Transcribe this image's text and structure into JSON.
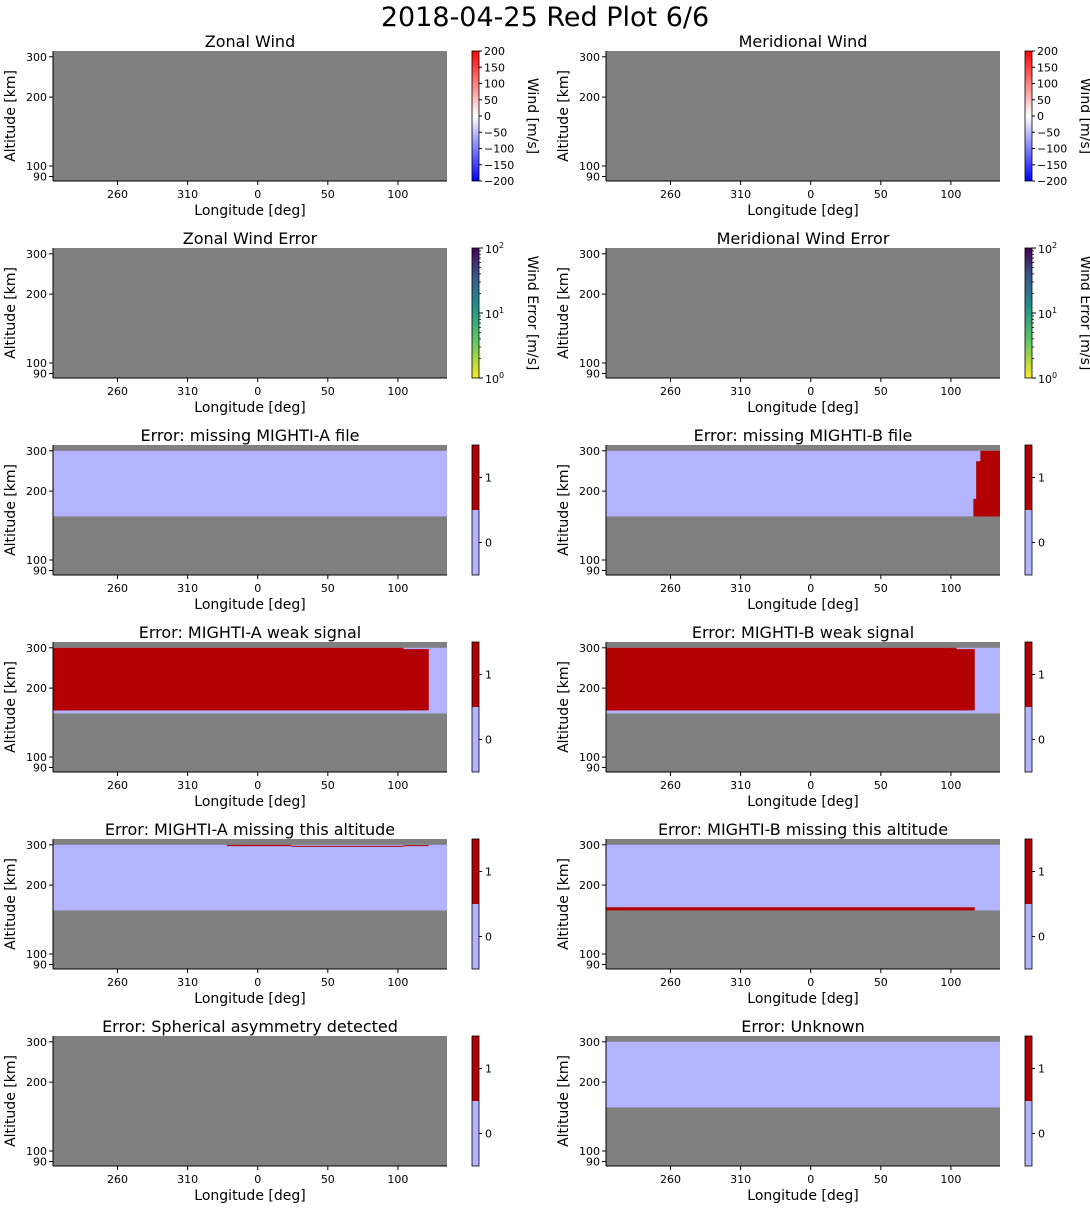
{
  "figure": {
    "title": "2018-04-25 Red Plot 6/6",
    "colors": {
      "missing": "#808080",
      "flag_on": "#b30000",
      "flag_off": "#b3b3ff"
    }
  },
  "chart_data": [
    {
      "type": "heatmap",
      "title": "Zonal Wind",
      "xlabel": "Longitude [deg]",
      "ylabel": "Altitude [km]",
      "xticks": [
        "260",
        "310",
        "0",
        "50",
        "100"
      ],
      "yticks": [
        "90",
        "100",
        "200",
        "300"
      ],
      "colorbar": {
        "kind": "diverging",
        "label": "Wind [m/s]",
        "range": [
          -200,
          200
        ],
        "ticks": [
          "200",
          "150",
          "100",
          "50",
          "0",
          "−50",
          "−100",
          "−150",
          "−200"
        ]
      },
      "content": "all missing (no data)"
    },
    {
      "type": "heatmap",
      "title": "Meridional Wind",
      "xlabel": "Longitude [deg]",
      "ylabel": "Altitude [km]",
      "xticks": [
        "260",
        "310",
        "0",
        "50",
        "100"
      ],
      "yticks": [
        "90",
        "100",
        "200",
        "300"
      ],
      "colorbar": {
        "kind": "diverging",
        "label": "Wind [m/s]",
        "range": [
          -200,
          200
        ],
        "ticks": [
          "200",
          "150",
          "100",
          "50",
          "0",
          "−50",
          "−100",
          "−150",
          "−200"
        ]
      },
      "content": "all missing (no data)"
    },
    {
      "type": "heatmap",
      "title": "Zonal Wind Error",
      "xlabel": "Longitude [deg]",
      "ylabel": "Altitude [km]",
      "xticks": [
        "260",
        "310",
        "0",
        "50",
        "100"
      ],
      "yticks": [
        "90",
        "100",
        "200",
        "300"
      ],
      "colorbar": {
        "kind": "log",
        "label": "Wind Error [m/s]",
        "range": [
          1,
          100
        ],
        "ticks": [
          {
            "base": "10",
            "exp": "2"
          },
          {
            "base": "10",
            "exp": "1"
          },
          {
            "base": "10",
            "exp": "0"
          }
        ]
      },
      "content": "all missing (no data)"
    },
    {
      "type": "heatmap",
      "title": "Meridional Wind Error",
      "xlabel": "Longitude [deg]",
      "ylabel": "Altitude [km]",
      "xticks": [
        "260",
        "310",
        "0",
        "50",
        "100"
      ],
      "yticks": [
        "90",
        "100",
        "200",
        "300"
      ],
      "colorbar": {
        "kind": "log",
        "label": "Wind Error [m/s]",
        "range": [
          1,
          100
        ],
        "ticks": [
          {
            "base": "10",
            "exp": "2"
          },
          {
            "base": "10",
            "exp": "1"
          },
          {
            "base": "10",
            "exp": "0"
          }
        ]
      },
      "content": "all missing (no data)"
    },
    {
      "type": "heatmap",
      "title": "Error: missing MIGHTI-A file",
      "xlabel": "Longitude [deg]",
      "ylabel": "Altitude [km]",
      "xticks": [
        "260",
        "310",
        "0",
        "50",
        "100"
      ],
      "yticks": [
        "90",
        "100",
        "200",
        "300"
      ],
      "colorbar": {
        "kind": "binary",
        "range": [
          0,
          1
        ],
        "ticks": [
          "1",
          "0"
        ]
      },
      "content": "flag 0 across the 155–300 km band, no flagged region"
    },
    {
      "type": "heatmap",
      "title": "Error: missing MIGHTI-B file",
      "xlabel": "Longitude [deg]",
      "ylabel": "Altitude [km]",
      "xticks": [
        "260",
        "310",
        "0",
        "50",
        "100"
      ],
      "yticks": [
        "90",
        "100",
        "200",
        "300"
      ],
      "colorbar": {
        "kind": "binary",
        "range": [
          0,
          1
        ],
        "ticks": [
          "1",
          "0"
        ]
      },
      "content": "flag 1 at the eastern edge (about lon 115–135, 155–300 km)"
    },
    {
      "type": "heatmap",
      "title": "Error: MIGHTI-A weak signal",
      "xlabel": "Longitude [deg]",
      "ylabel": "Altitude [km]",
      "xticks": [
        "260",
        "310",
        "0",
        "50",
        "100"
      ],
      "yticks": [
        "90",
        "100",
        "200",
        "300"
      ],
      "colorbar": {
        "kind": "binary",
        "range": [
          0,
          1
        ],
        "ticks": [
          "1",
          "0"
        ]
      },
      "content": "flag 1 from the western edge to about lon 122, 160–300 km"
    },
    {
      "type": "heatmap",
      "title": "Error: MIGHTI-B weak signal",
      "xlabel": "Longitude [deg]",
      "ylabel": "Altitude [km]",
      "xticks": [
        "260",
        "310",
        "0",
        "50",
        "100"
      ],
      "yticks": [
        "90",
        "100",
        "200",
        "300"
      ],
      "colorbar": {
        "kind": "binary",
        "range": [
          0,
          1
        ],
        "ticks": [
          "1",
          "0"
        ]
      },
      "content": "flag 1 from the western edge to about lon 117, 160–300 km"
    },
    {
      "type": "heatmap",
      "title": "Error: MIGHTI-A missing this altitude",
      "xlabel": "Longitude [deg]",
      "ylabel": "Altitude [km]",
      "xticks": [
        "260",
        "310",
        "0",
        "50",
        "100"
      ],
      "yticks": [
        "90",
        "100",
        "200",
        "300"
      ],
      "colorbar": {
        "kind": "binary",
        "range": [
          0,
          1
        ],
        "ticks": [
          "1",
          "0"
        ]
      },
      "content": "flag 1 in a thin top layer (about 296–300 km) from about lon 338 to 122"
    },
    {
      "type": "heatmap",
      "title": "Error: MIGHTI-B missing this altitude",
      "xlabel": "Longitude [deg]",
      "ylabel": "Altitude [km]",
      "xticks": [
        "260",
        "310",
        "0",
        "50",
        "100"
      ],
      "yticks": [
        "90",
        "100",
        "200",
        "300"
      ],
      "colorbar": {
        "kind": "binary",
        "range": [
          0,
          1
        ],
        "ticks": [
          "1",
          "0"
        ]
      },
      "content": "flag 1 in a thin bottom layer (about 155–160 km) from the western edge to about lon 117"
    },
    {
      "type": "heatmap",
      "title": "Error: Spherical asymmetry detected",
      "xlabel": "Longitude [deg]",
      "ylabel": "Altitude [km]",
      "xticks": [
        "260",
        "310",
        "0",
        "50",
        "100"
      ],
      "yticks": [
        "90",
        "100",
        "200",
        "300"
      ],
      "colorbar": {
        "kind": "binary",
        "range": [
          0,
          1
        ],
        "ticks": [
          "1",
          "0"
        ]
      },
      "content": "all missing (no data)"
    },
    {
      "type": "heatmap",
      "title": "Error: Unknown",
      "xlabel": "Longitude [deg]",
      "ylabel": "Altitude [km]",
      "xticks": [
        "260",
        "310",
        "0",
        "50",
        "100"
      ],
      "yticks": [
        "90",
        "100",
        "200",
        "300"
      ],
      "colorbar": {
        "kind": "binary",
        "range": [
          0,
          1
        ],
        "ticks": [
          "1",
          "0"
        ]
      },
      "content": "flag 0 across the 155–300 km band, no flagged region"
    }
  ]
}
